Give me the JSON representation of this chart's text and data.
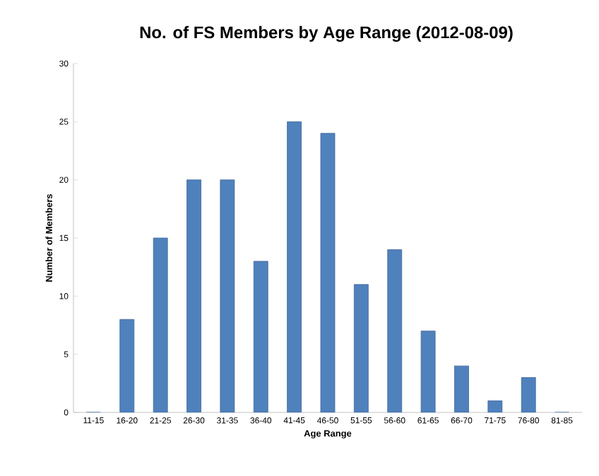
{
  "chart_data": {
    "type": "bar",
    "title": "No. of FS Members by Age Range (2012-08-09)",
    "xlabel": "Age Range",
    "ylabel": "Number of Members",
    "categories": [
      "11-15",
      "16-20",
      "21-25",
      "26-30",
      "31-35",
      "36-40",
      "41-45",
      "46-50",
      "51-55",
      "56-60",
      "61-65",
      "66-70",
      "71-75",
      "76-80",
      "81-85"
    ],
    "values": [
      0,
      8,
      15,
      20,
      20,
      13,
      25,
      24,
      11,
      14,
      7,
      4,
      1,
      3,
      0
    ],
    "color": "#4f81bd",
    "ylim": [
      0,
      30
    ],
    "yticks": [
      0,
      5,
      10,
      15,
      20,
      25,
      30
    ]
  }
}
